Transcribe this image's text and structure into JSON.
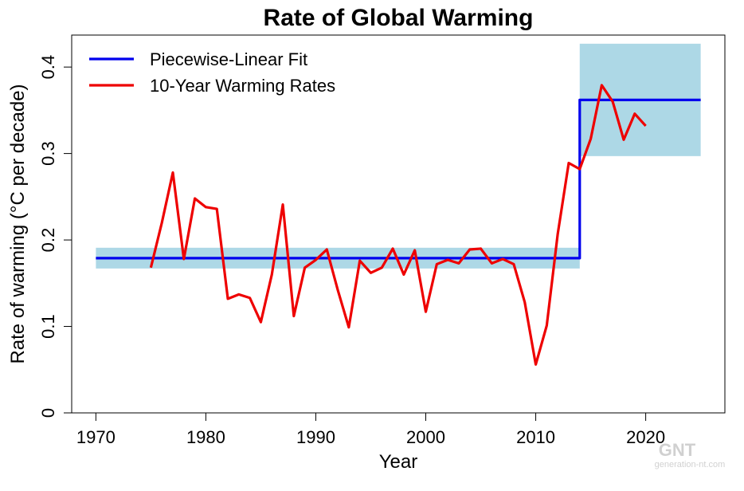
{
  "chart_data": {
    "type": "line",
    "title": "Rate of Global Warming",
    "xlabel": "Year",
    "ylabel": "Rate of warming (°C per decade)",
    "xlim": [
      1967.8,
      2027.2
    ],
    "ylim": [
      0,
      0.437
    ],
    "x_ticks": [
      1970,
      1980,
      1990,
      2000,
      2010,
      2020
    ],
    "y_ticks": [
      0,
      0.1,
      0.2,
      0.3,
      0.4
    ],
    "y_tick_labels": [
      "0",
      "0.1",
      "0.2",
      "0.3",
      "0.4"
    ],
    "grid": false,
    "legend_position": "top-left",
    "bands": [
      {
        "x": [
          1970,
          2014
        ],
        "y": [
          0.167,
          0.191
        ],
        "color": "#add8e6"
      },
      {
        "x": [
          2014,
          2025
        ],
        "y": [
          0.297,
          0.427
        ],
        "color": "#add8e6"
      }
    ],
    "series": [
      {
        "name": "Piecewise-Linear Fit",
        "color": "#0000ee",
        "x": [
          1970,
          2014,
          2014,
          2025
        ],
        "y": [
          0.179,
          0.179,
          0.362,
          0.362
        ]
      },
      {
        "name": "10-Year Warming Rates",
        "color": "#ee0000",
        "x": [
          1975,
          1976,
          1977,
          1978,
          1979,
          1980,
          1981,
          1982,
          1983,
          1984,
          1985,
          1986,
          1987,
          1988,
          1989,
          1990,
          1991,
          1992,
          1993,
          1994,
          1995,
          1996,
          1997,
          1998,
          1999,
          2000,
          2001,
          2002,
          2003,
          2004,
          2005,
          2006,
          2007,
          2008,
          2009,
          2010,
          2011,
          2012,
          2013,
          2014,
          2015,
          2016,
          2017,
          2018,
          2019,
          2020
        ],
        "y": [
          0.168,
          0.22,
          0.278,
          0.178,
          0.248,
          0.238,
          0.236,
          0.132,
          0.137,
          0.133,
          0.105,
          0.16,
          0.241,
          0.112,
          0.168,
          0.177,
          0.189,
          0.142,
          0.099,
          0.176,
          0.162,
          0.168,
          0.19,
          0.16,
          0.188,
          0.117,
          0.172,
          0.177,
          0.173,
          0.189,
          0.19,
          0.173,
          0.178,
          0.172,
          0.128,
          0.056,
          0.101,
          0.207,
          0.289,
          0.282,
          0.317,
          0.379,
          0.36,
          0.316,
          0.346,
          0.332
        ]
      }
    ]
  },
  "watermark": {
    "logo": "GNT",
    "site": "generation-nt.com"
  }
}
